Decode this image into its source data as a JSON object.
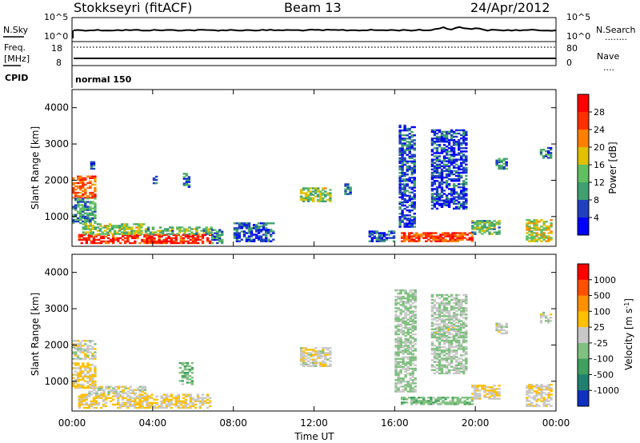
{
  "header": {
    "station": "Stokkseyri (fitACF)",
    "beam": "Beam 13",
    "date": "24/Apr/2012"
  },
  "noise_panel": {
    "left_label": "N.Sky",
    "left_ticks": [
      "10^5",
      "10^0"
    ],
    "right_ticks": [
      "10^5",
      "10^0"
    ],
    "right_label": "N.Search",
    "right_line": "........"
  },
  "freq_panel": {
    "left_label_1": "Freq.",
    "left_label_2": "[MHz]",
    "left_ticks": [
      "18",
      "8"
    ],
    "right_ticks": [
      "80",
      "0"
    ],
    "right_label": "Nave",
    "right_line": "...."
  },
  "cpid_panel": {
    "label": "CPID",
    "value": "normal 150"
  },
  "time_axis": {
    "ticks": [
      "00:00",
      "04:00",
      "08:00",
      "12:00",
      "16:00",
      "20:00",
      "00:00"
    ],
    "label": "Time UT"
  },
  "chart_data": [
    {
      "type": "heatmap",
      "panel": "power",
      "ylabel": "Slant Range [km]",
      "yticks": [
        1000,
        2000,
        3000,
        4000
      ],
      "ylim": [
        180,
        4500
      ],
      "xlim_hours": [
        0,
        24
      ],
      "colorbar": {
        "label": "Power [dB]",
        "ticks": [
          "28",
          "24",
          "20",
          "16",
          "12",
          "8",
          "4"
        ],
        "colors": [
          "#0000ff",
          "#2040c0",
          "#40a070",
          "#60c060",
          "#e0c000",
          "#ff8000",
          "#ff3000",
          "#ff0000"
        ],
        "range": [
          0,
          30
        ]
      },
      "regions": [
        {
          "t": [
            0.0,
            1.1
          ],
          "r": [
            1500,
            2100
          ],
          "v": 22
        },
        {
          "t": [
            0.0,
            1.2
          ],
          "r": [
            800,
            1500
          ],
          "v": 10
        },
        {
          "t": [
            0.9,
            1.1
          ],
          "r": [
            2300,
            2500
          ],
          "v": 5
        },
        {
          "t": [
            0.3,
            6.9
          ],
          "r": [
            250,
            500
          ],
          "v": 26
        },
        {
          "t": [
            0.5,
            3.6
          ],
          "r": [
            500,
            800
          ],
          "v": 14
        },
        {
          "t": [
            3.6,
            6.9
          ],
          "r": [
            500,
            700
          ],
          "v": 12
        },
        {
          "t": [
            4.0,
            4.2
          ],
          "r": [
            1900,
            2100
          ],
          "v": 6
        },
        {
          "t": [
            5.5,
            5.8
          ],
          "r": [
            1800,
            2200
          ],
          "v": 8
        },
        {
          "t": [
            6.9,
            7.5
          ],
          "r": [
            250,
            650
          ],
          "v": 8
        },
        {
          "t": [
            8.0,
            10.0
          ],
          "r": [
            300,
            800
          ],
          "v": 6
        },
        {
          "t": [
            11.3,
            12.8
          ],
          "r": [
            1400,
            1800
          ],
          "v": 14
        },
        {
          "t": [
            13.5,
            13.8
          ],
          "r": [
            1600,
            1900
          ],
          "v": 8
        },
        {
          "t": [
            16.3,
            19.8
          ],
          "r": [
            300,
            550
          ],
          "v": 24
        },
        {
          "t": [
            16.2,
            17.0
          ],
          "r": [
            700,
            3500
          ],
          "v": 6
        },
        {
          "t": [
            17.8,
            19.5
          ],
          "r": [
            1200,
            3400
          ],
          "v": 5
        },
        {
          "t": [
            19.8,
            21.2
          ],
          "r": [
            500,
            900
          ],
          "v": 12
        },
        {
          "t": [
            21.0,
            21.5
          ],
          "r": [
            2300,
            2600
          ],
          "v": 8
        },
        {
          "t": [
            22.5,
            23.8
          ],
          "r": [
            300,
            900
          ],
          "v": 16
        },
        {
          "t": [
            23.2,
            23.8
          ],
          "r": [
            2600,
            2900
          ],
          "v": 8
        },
        {
          "t": [
            14.7,
            16.0
          ],
          "r": [
            300,
            600
          ],
          "v": 6
        }
      ]
    },
    {
      "type": "heatmap",
      "panel": "velocity",
      "ylabel": "Slant Range [km]",
      "yticks": [
        1000,
        2000,
        3000,
        4000
      ],
      "ylim": [
        180,
        4500
      ],
      "xlim_hours": [
        0,
        24
      ],
      "colorbar": {
        "label": "Velocity [m s^-1]",
        "ticks": [
          "1000",
          "500",
          "100",
          "25",
          "-25",
          "-100",
          "-500",
          "-1000"
        ],
        "colors": [
          "#1030c0",
          "#208070",
          "#40a060",
          "#80c080",
          "#c8c8c8",
          "#ffc000",
          "#ff9000",
          "#ff5000",
          "#ff0000"
        ],
        "range": [
          -1200,
          1200
        ]
      },
      "regions": [
        {
          "t": [
            0.0,
            1.1
          ],
          "r": [
            1600,
            2100
          ],
          "v": 0
        },
        {
          "t": [
            0.0,
            1.2
          ],
          "r": [
            800,
            1500
          ],
          "v": 200
        },
        {
          "t": [
            0.3,
            6.9
          ],
          "r": [
            250,
            650
          ],
          "v": 150
        },
        {
          "t": [
            0.8,
            3.6
          ],
          "r": [
            650,
            850
          ],
          "v": 0
        },
        {
          "t": [
            5.3,
            6.0
          ],
          "r": [
            900,
            1500
          ],
          "v": -300
        },
        {
          "t": [
            11.3,
            12.8
          ],
          "r": [
            1400,
            1900
          ],
          "v": 30
        },
        {
          "t": [
            16.3,
            19.8
          ],
          "r": [
            350,
            550
          ],
          "v": -300
        },
        {
          "t": [
            16.0,
            17.0
          ],
          "r": [
            700,
            3500
          ],
          "v": -200
        },
        {
          "t": [
            18.0,
            19.3
          ],
          "r": [
            2300,
            2500
          ],
          "v": 0
        },
        {
          "t": [
            17.8,
            19.5
          ],
          "r": [
            1200,
            3400
          ],
          "v": -150
        },
        {
          "t": [
            19.8,
            21.2
          ],
          "r": [
            500,
            900
          ],
          "v": 100
        },
        {
          "t": [
            21.0,
            21.5
          ],
          "r": [
            2300,
            2600
          ],
          "v": 0
        },
        {
          "t": [
            22.5,
            23.8
          ],
          "r": [
            300,
            900
          ],
          "v": 80
        },
        {
          "t": [
            23.2,
            23.8
          ],
          "r": [
            2600,
            2900
          ],
          "v": 0
        }
      ]
    }
  ]
}
